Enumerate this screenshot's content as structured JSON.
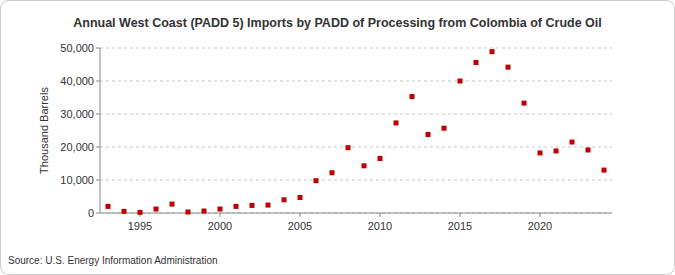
{
  "chart_data": {
    "type": "scatter",
    "title": "Annual West Coast (PADD 5) Imports by PADD of Processing from Colombia of Crude Oil",
    "y_label": "Thousand Barrels",
    "source": "Source: U.S. Energy Information Administration",
    "x": [
      1993,
      1994,
      1995,
      1996,
      1997,
      1998,
      1999,
      2000,
      2001,
      2002,
      2003,
      2004,
      2005,
      2006,
      2007,
      2008,
      2009,
      2010,
      2011,
      2012,
      2013,
      2014,
      2015,
      2016,
      2017,
      2018,
      2019,
      2020,
      2021,
      2022,
      2023,
      2024
    ],
    "values": [
      2000,
      500,
      200,
      1200,
      2700,
      300,
      600,
      1200,
      2000,
      2300,
      2400,
      4000,
      4700,
      9800,
      12200,
      19800,
      14300,
      16500,
      27300,
      35300,
      23800,
      25700,
      40000,
      45600,
      48900,
      44200,
      33300,
      18200,
      18800,
      21500,
      19100,
      13000
    ],
    "color": "#c00000",
    "marker": "square",
    "xlim": [
      1992.5,
      2024.5
    ],
    "xticks": [
      1995,
      2000,
      2005,
      2010,
      2015,
      2020
    ],
    "ylim": [
      0,
      50000
    ],
    "yticks": [
      0,
      {
        "value": 10000,
        "label": "10,000"
      },
      {
        "value": 20000,
        "label": "20,000"
      },
      {
        "value": 30000,
        "label": "30,000"
      },
      {
        "value": 40000,
        "label": "40,000"
      },
      {
        "value": 50000,
        "label": "50,000"
      }
    ],
    "grid": true
  }
}
